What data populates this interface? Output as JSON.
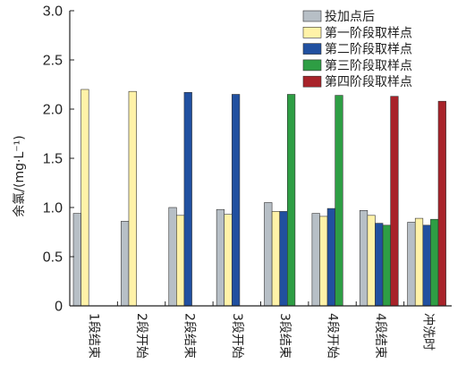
{
  "chart_data": {
    "type": "bar",
    "title": "",
    "xlabel": "",
    "ylabel": "余氯/(mg·L⁻¹)",
    "ylim": [
      0,
      3.0
    ],
    "yticks": [
      "0",
      "0.5",
      "1.0",
      "1.5",
      "2.0",
      "2.5",
      "3.0"
    ],
    "ytick_values": [
      0,
      0.5,
      1.0,
      1.5,
      2.0,
      2.5,
      3.0
    ],
    "categories": [
      "1段结束",
      "2段开始",
      "2段结束",
      "3段开始",
      "3段结束",
      "4段开始",
      "4段结束",
      "冲洗时"
    ],
    "legend_position": "top-right",
    "grid": false,
    "series": [
      {
        "name": "投加点后",
        "color": "#b7bfc6",
        "values": [
          0.94,
          0.86,
          1.0,
          0.98,
          1.05,
          0.94,
          0.97,
          0.85
        ]
      },
      {
        "name": "第一阶段取样点",
        "color": "#fff2a8",
        "values": [
          2.2,
          2.18,
          0.92,
          0.93,
          0.96,
          0.91,
          0.92,
          0.89
        ]
      },
      {
        "name": "第二阶段取样点",
        "color": "#2150a0",
        "values": [
          null,
          null,
          2.17,
          2.15,
          0.96,
          0.99,
          0.84,
          0.82
        ]
      },
      {
        "name": "第三阶段取样点",
        "color": "#2e9e44",
        "values": [
          null,
          null,
          null,
          null,
          2.15,
          2.14,
          0.82,
          0.88
        ]
      },
      {
        "name": "第四阶段取样点",
        "color": "#a8232a",
        "values": [
          null,
          null,
          null,
          null,
          null,
          null,
          2.13,
          2.08
        ]
      }
    ]
  }
}
